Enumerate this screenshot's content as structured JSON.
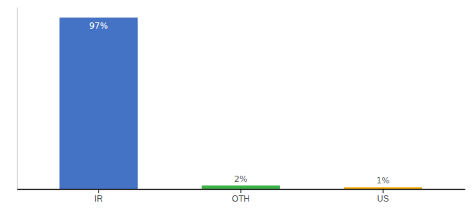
{
  "chart_data": {
    "type": "bar",
    "categories": [
      "IR",
      "OTH",
      "US"
    ],
    "values": [
      97,
      2,
      1
    ],
    "value_labels": [
      "97%",
      "2%",
      "1%"
    ],
    "colors": [
      "#4472c4",
      "#3cb044",
      "#f0a500"
    ],
    "ylim": [
      0,
      103
    ],
    "data_labels": true,
    "grid": false,
    "tick_labels": "x"
  }
}
